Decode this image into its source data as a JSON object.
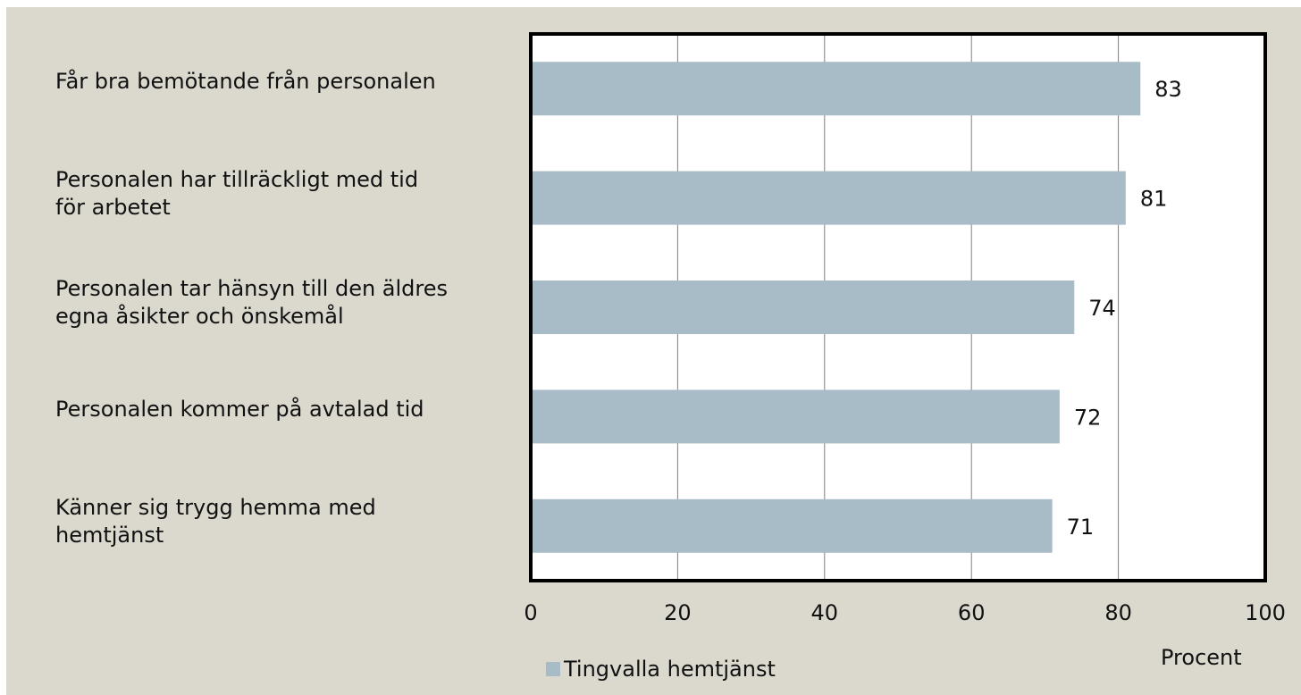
{
  "chart_data": {
    "type": "bar",
    "orientation": "horizontal",
    "categories": [
      "Får bra bemötande från personalen",
      "Personalen har tillräckligt med tid för arbetet",
      "Personalen tar hänsyn till den äldres egna åsikter och önskemål",
      "Personalen kommer på avtalad tid",
      "Känner sig trygg hemma med hemtjänst"
    ],
    "category_lines": [
      [
        "Får bra bemötande från personalen"
      ],
      [
        "Personalen har tillräckligt med tid",
        "för arbetet"
      ],
      [
        "Personalen tar hänsyn till den äldres",
        "egna åsikter och önskemål"
      ],
      [
        "Personalen kommer på avtalad tid"
      ],
      [
        "Känner sig trygg hemma med",
        "hemtjänst"
      ]
    ],
    "series": [
      {
        "name": "Tingvalla hemtjänst",
        "values": [
          83,
          81,
          74,
          72,
          71
        ]
      }
    ],
    "data_labels": [
      "83",
      "81",
      "74",
      "72",
      "71"
    ],
    "xlabel": "Procent",
    "xlim": [
      0,
      100
    ],
    "xticks": [
      0,
      20,
      40,
      60,
      80,
      100
    ],
    "grid": "vertical",
    "legend_position": "bottom-left",
    "colors": {
      "bar": "#a7bcc7",
      "background": "#dbd8cd",
      "plot_area": "#ffffff",
      "gridline": "#7f7f7f",
      "border": "#000000"
    }
  }
}
